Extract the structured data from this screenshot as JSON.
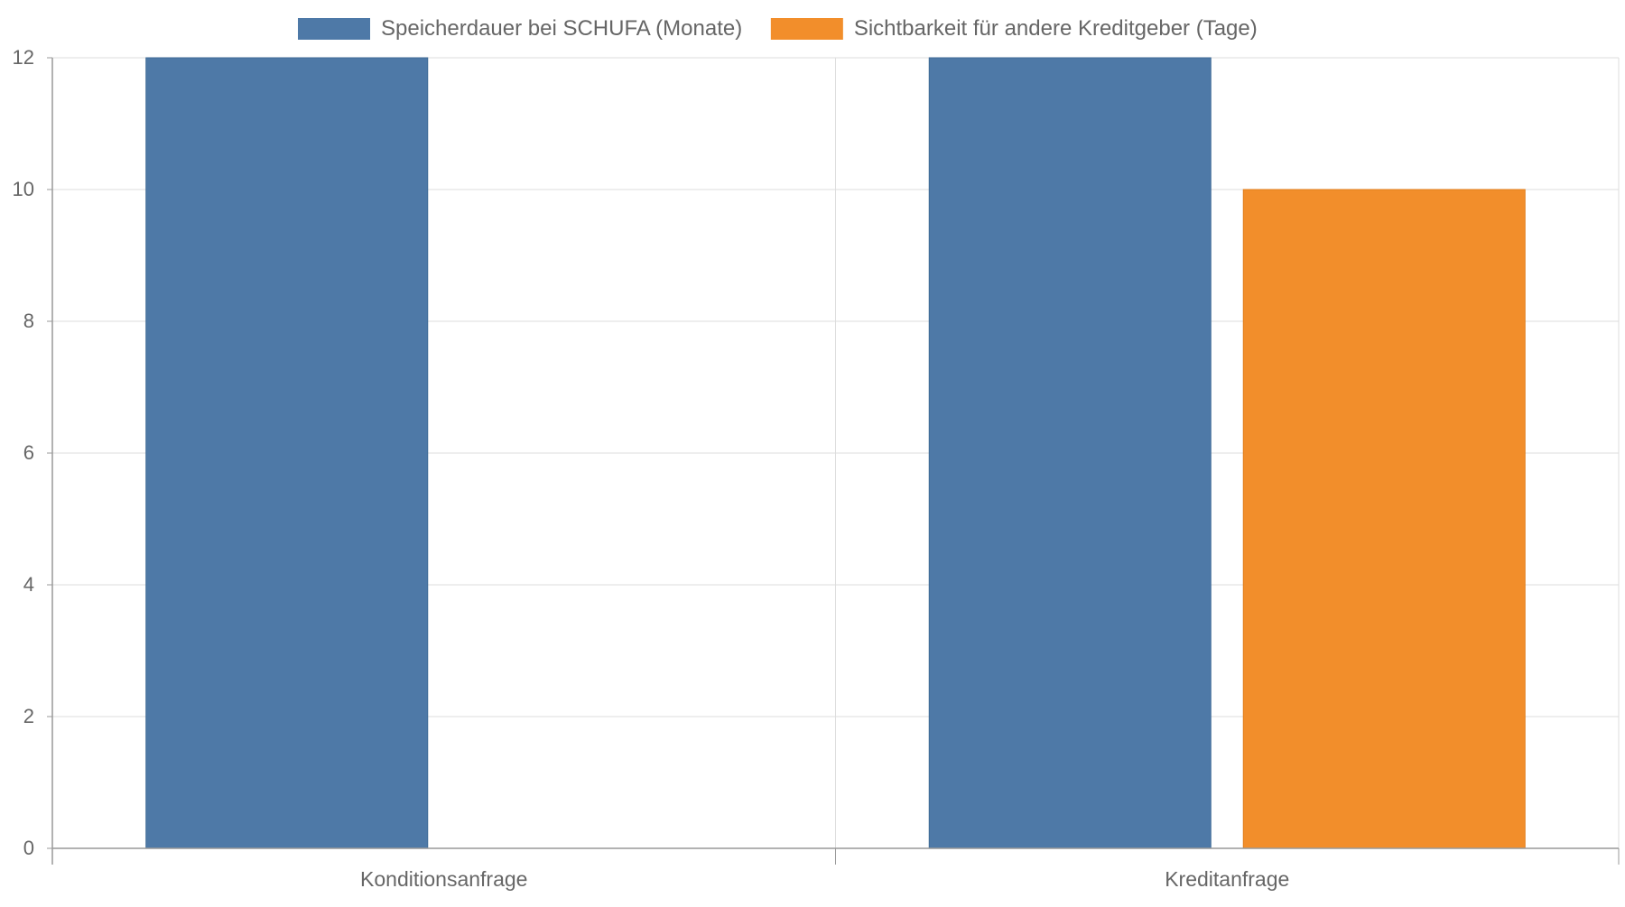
{
  "chart_data": {
    "type": "bar",
    "title": "",
    "xlabel": "",
    "ylabel": "",
    "categories": [
      "Konditionsanfrage",
      "Kreditanfrage"
    ],
    "series": [
      {
        "name": "Speicherdauer bei SCHUFA (Monate)",
        "values": [
          12,
          12
        ],
        "color": "#4e79a7"
      },
      {
        "name": "Sichtbarkeit für andere Kreditgeber (Tage)",
        "values": [
          0,
          10
        ],
        "color": "#f28e2b"
      }
    ],
    "ylim": [
      0,
      12
    ],
    "yticks": [
      0,
      2,
      4,
      6,
      8,
      10,
      12
    ],
    "grid": true,
    "legend": "top-center"
  }
}
